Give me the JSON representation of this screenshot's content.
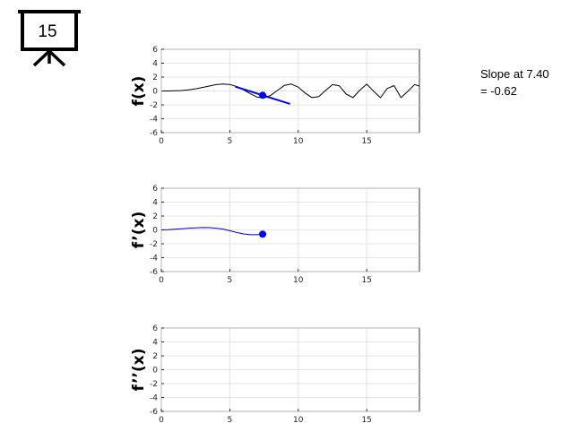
{
  "badge": {
    "label": "15",
    "icon": "presentation-board-icon"
  },
  "annotation": {
    "line1": "Slope at 7.40",
    "line2": "= -0.62"
  },
  "chart_data": [
    {
      "type": "line",
      "ylabel": "f(x)",
      "xlim": [
        0,
        18.85
      ],
      "ylim": [
        -6,
        6
      ],
      "xticks": [
        "0",
        "5",
        "10",
        "15"
      ],
      "yticks": [
        "6",
        "4",
        "2",
        "0",
        "-2",
        "-4",
        "-6"
      ],
      "grid": true,
      "series": [
        {
          "role": "function",
          "color": "#000000",
          "x": [
            0,
            0.5,
            1,
            1.5,
            2,
            2.5,
            3,
            3.5,
            4,
            4.5,
            5,
            5.5,
            6,
            6.5,
            7,
            7.5,
            8,
            8.5,
            9,
            9.5,
            10,
            10.5,
            11,
            11.5,
            12,
            12.5,
            13,
            13.5,
            14,
            14.5,
            15,
            15.5,
            16,
            16.5,
            17,
            17.5,
            18,
            18.5,
            18.85
          ],
          "y": [
            0,
            0,
            0.02,
            0.07,
            0.16,
            0.31,
            0.5,
            0.71,
            0.91,
            1.0,
            0.93,
            0.65,
            0.17,
            -0.4,
            -0.88,
            -1.0,
            -0.62,
            0.12,
            0.81,
            0.99,
            0.55,
            -0.28,
            -0.95,
            -0.8,
            0.08,
            0.92,
            0.73,
            -0.45,
            -0.96,
            0.12,
            0.98,
            -0.02,
            -0.97,
            0.36,
            0.78,
            -0.95,
            -0.06,
            0.93,
            0.7
          ]
        }
      ],
      "tangent": {
        "x": [
          5.4,
          9.4
        ],
        "y": [
          0.62,
          -1.86
        ],
        "color": "#0000e6"
      },
      "marker": {
        "x": 7.4,
        "y": -0.62,
        "color": "#0000ff"
      }
    },
    {
      "type": "line",
      "ylabel": "f’(x)",
      "xlim": [
        0,
        18.85
      ],
      "ylim": [
        -6,
        6
      ],
      "xticks": [
        "0",
        "5",
        "10",
        "15"
      ],
      "yticks": [
        "6",
        "4",
        "2",
        "0",
        "-2",
        "-4",
        "-6"
      ],
      "grid": true,
      "series": [
        {
          "role": "derivative",
          "color": "#0000cc",
          "x": [
            0,
            0.5,
            1,
            1.5,
            2,
            2.5,
            3,
            3.5,
            4,
            4.5,
            5,
            5.5,
            6,
            6.5,
            7,
            7.4
          ],
          "y": [
            0,
            0.04,
            0.1,
            0.17,
            0.24,
            0.3,
            0.33,
            0.32,
            0.25,
            0.11,
            -0.12,
            -0.38,
            -0.58,
            -0.7,
            -0.7,
            -0.62
          ]
        }
      ],
      "marker": {
        "x": 7.4,
        "y": -0.62,
        "color": "#0000ff"
      }
    },
    {
      "type": "line",
      "ylabel": "f’’(x)",
      "xlim": [
        0,
        18.85
      ],
      "ylim": [
        -6,
        6
      ],
      "xticks": [
        "0",
        "5",
        "10",
        "15"
      ],
      "yticks": [
        "6",
        "4",
        "2",
        "0",
        "-2",
        "-4",
        "-6"
      ],
      "grid": true,
      "series": []
    }
  ]
}
